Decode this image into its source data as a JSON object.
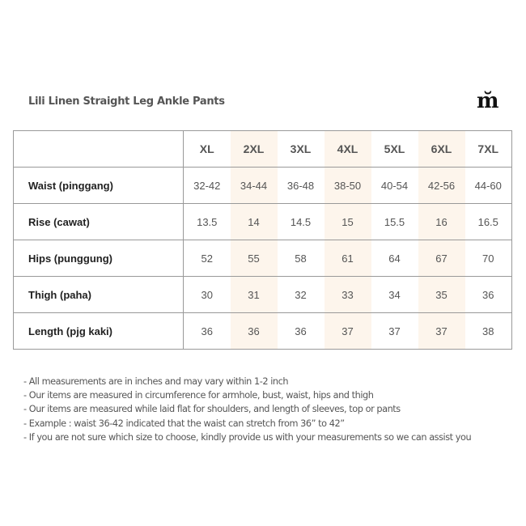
{
  "title": "Lili Linen Straight Leg Ankle Pants",
  "logo": "m",
  "colors": {
    "shade": "#fdf5ec",
    "border": "#999999"
  },
  "table": {
    "sizes": [
      "XL",
      "2XL",
      "3XL",
      "4XL",
      "5XL",
      "6XL",
      "7XL"
    ],
    "rows": [
      {
        "label": "Waist (pinggang)",
        "values": [
          "32-42",
          "34-44",
          "36-48",
          "38-50",
          "40-54",
          "42-56",
          "44-60"
        ]
      },
      {
        "label": "Rise (cawat)",
        "values": [
          "13.5",
          "14",
          "14.5",
          "15",
          "15.5",
          "16",
          "16.5"
        ]
      },
      {
        "label": "Hips (punggung)",
        "values": [
          "52",
          "55",
          "58",
          "61",
          "64",
          "67",
          "70"
        ]
      },
      {
        "label": "Thigh (paha)",
        "values": [
          "30",
          "31",
          "32",
          "33",
          "34",
          "35",
          "36"
        ]
      },
      {
        "label": "Length (pjg kaki)",
        "values": [
          "36",
          "36",
          "36",
          "37",
          "37",
          "37",
          "38"
        ]
      }
    ]
  },
  "notes": [
    "- All measurements are in inches and may vary within 1-2 inch",
    "- Our items are measured in circumference for armhole, bust, waist, hips and thigh",
    "- Our items are measured while laid flat for shoulders, and length of sleeves, top or pants",
    "- Example : waist 36-42 indicated that the waist can stretch from 36” to 42”",
    "- If you are not sure which size to choose, kindly provide us with your measurements so we can assist you"
  ]
}
